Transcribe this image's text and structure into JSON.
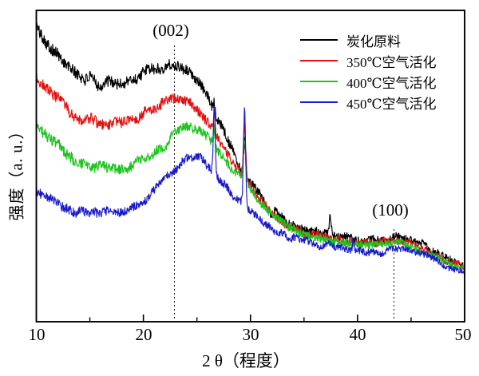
{
  "chart_data": {
    "type": "line",
    "title": "",
    "xlabel": "2 θ（程度）",
    "ylabel": "强度（a. u.）",
    "xlim": [
      10,
      50
    ],
    "ylim_units": "arbitrary intensity 0-100 (no y ticks shown)",
    "x_ticks": [
      20,
      30,
      40
    ],
    "x_tick_labels": [
      "10",
      "20",
      "30",
      "40",
      "50"
    ],
    "x_tick_label_positions": [
      10,
      20,
      30,
      40,
      50
    ],
    "x_minor_ticks": [
      15,
      25,
      35,
      45
    ],
    "grid": false,
    "frame": "full box, ticks inward on bottom axis only",
    "legend_position": "top-right, no border",
    "annotations": [
      {
        "label": "(002)",
        "x": 22.9,
        "guide": "vertical dashed line"
      },
      {
        "label": "(100)",
        "x": 43.4,
        "guide": "vertical dashed line"
      }
    ],
    "series": [
      {
        "name": "炭化原料",
        "color": "#000000",
        "seed": 101,
        "noise_left": 2.0,
        "noise_right": 1.1,
        "trend": [
          [
            10,
            95
          ],
          [
            11.5,
            88
          ],
          [
            13,
            81.5
          ],
          [
            14.5,
            78
          ],
          [
            16,
            76.5
          ],
          [
            17.5,
            76.5
          ],
          [
            19,
            78
          ],
          [
            20.5,
            80.5
          ],
          [
            22,
            82.5
          ],
          [
            23,
            83
          ],
          [
            24,
            81.5
          ],
          [
            25,
            78
          ],
          [
            26,
            72.5
          ],
          [
            27,
            65.5
          ],
          [
            28,
            58
          ],
          [
            29,
            50.5
          ],
          [
            30,
            44.5
          ],
          [
            31,
            40
          ],
          [
            32,
            34.5
          ],
          [
            33.5,
            31.5
          ],
          [
            35,
            29.5
          ],
          [
            36.5,
            28.2
          ],
          [
            38,
            27.2
          ],
          [
            39.5,
            26.5
          ],
          [
            41,
            26
          ],
          [
            42.2,
            26.4
          ],
          [
            43.5,
            27.4
          ],
          [
            44.8,
            26.2
          ],
          [
            46,
            24.6
          ],
          [
            47.5,
            22.2
          ],
          [
            49,
            19.4
          ],
          [
            50,
            18.2
          ]
        ],
        "sharp_peaks": [
          [
            26.6,
            4,
            0.08
          ],
          [
            29.45,
            11,
            0.1
          ],
          [
            32.35,
            3,
            0.08
          ],
          [
            37.45,
            5.5,
            0.09
          ]
        ]
      },
      {
        "name": "350℃空气活化",
        "color": "#e51111",
        "seed": 202,
        "noise_left": 1.8,
        "noise_right": 1.0,
        "trend": [
          [
            10,
            79
          ],
          [
            11.5,
            72.5
          ],
          [
            13,
            67.5
          ],
          [
            14.5,
            65
          ],
          [
            16,
            63.2
          ],
          [
            17.5,
            63.2
          ],
          [
            19,
            65.5
          ],
          [
            20.5,
            68
          ],
          [
            22,
            70.8
          ],
          [
            23.2,
            72
          ],
          [
            24.2,
            70.5
          ],
          [
            25.2,
            67.5
          ],
          [
            26.2,
            63
          ],
          [
            27.2,
            57.5
          ],
          [
            28.2,
            52
          ],
          [
            29.2,
            47
          ],
          [
            30.2,
            42.5
          ],
          [
            31.2,
            38.5
          ],
          [
            32.2,
            34.8
          ],
          [
            33.5,
            31
          ],
          [
            35,
            28.8
          ],
          [
            36.5,
            27.4
          ],
          [
            38,
            26.4
          ],
          [
            39.5,
            25.7
          ],
          [
            41,
            25.1
          ],
          [
            42.2,
            25.5
          ],
          [
            43.5,
            26.3
          ],
          [
            44.8,
            25.1
          ],
          [
            46,
            23.5
          ],
          [
            47.5,
            21.2
          ],
          [
            49,
            18.6
          ],
          [
            50,
            17.4
          ]
        ],
        "sharp_peaks": [
          [
            26.6,
            5,
            0.08
          ],
          [
            29.45,
            17,
            0.1
          ]
        ]
      },
      {
        "name": "400℃空气活化",
        "color": "#1ec41e",
        "seed": 303,
        "noise_left": 1.8,
        "noise_right": 1.0,
        "trend": [
          [
            10,
            63.5
          ],
          [
            11.5,
            57.5
          ],
          [
            13,
            53
          ],
          [
            14.5,
            50.2
          ],
          [
            16,
            48.8
          ],
          [
            17.5,
            48.8
          ],
          [
            19,
            50.5
          ],
          [
            20.5,
            53.5
          ],
          [
            22,
            57.5
          ],
          [
            23.8,
            62.5
          ],
          [
            25,
            61.5
          ],
          [
            26,
            58.5
          ],
          [
            27,
            54.5
          ],
          [
            28,
            50.5
          ],
          [
            29.2,
            46
          ],
          [
            30.2,
            41.5
          ],
          [
            31.2,
            37.5
          ],
          [
            32.2,
            34
          ],
          [
            33.5,
            30.5
          ],
          [
            35,
            28
          ],
          [
            36.5,
            26.6
          ],
          [
            38,
            25.6
          ],
          [
            39.5,
            24.9
          ],
          [
            41,
            24.3
          ],
          [
            42.2,
            24.7
          ],
          [
            43.5,
            25.4
          ],
          [
            44.8,
            24.3
          ],
          [
            46,
            22.7
          ],
          [
            47.5,
            20.4
          ],
          [
            49,
            17.8
          ],
          [
            50,
            16.8
          ]
        ],
        "sharp_peaks": [
          [
            26.6,
            6,
            0.08
          ],
          [
            29.45,
            13,
            0.1
          ]
        ]
      },
      {
        "name": "450℃空气活化",
        "color": "#1a1acd",
        "seed": 404,
        "noise_left": 1.5,
        "noise_right": 1.0,
        "trend": [
          [
            10,
            42
          ],
          [
            11.5,
            38.5
          ],
          [
            13,
            36.2
          ],
          [
            14.5,
            35
          ],
          [
            16,
            34.4
          ],
          [
            17.5,
            34.6
          ],
          [
            19,
            36.5
          ],
          [
            20.5,
            40
          ],
          [
            22,
            45.5
          ],
          [
            23.5,
            51
          ],
          [
            24.6,
            53
          ],
          [
            25.6,
            51.5
          ],
          [
            26.6,
            48
          ],
          [
            27.6,
            44
          ],
          [
            28.6,
            40
          ],
          [
            29.6,
            36.4
          ],
          [
            30.6,
            33.4
          ],
          [
            31.6,
            30.9
          ],
          [
            32.8,
            28.7
          ],
          [
            34,
            27
          ],
          [
            35.5,
            25.4
          ],
          [
            37,
            24.2
          ],
          [
            38.5,
            23.4
          ],
          [
            40,
            22.8
          ],
          [
            41.5,
            22.4
          ],
          [
            42.8,
            22.8
          ],
          [
            43.8,
            23.2
          ],
          [
            45,
            22.4
          ],
          [
            46.2,
            21.2
          ],
          [
            47.5,
            19.4
          ],
          [
            49,
            17
          ],
          [
            50,
            16
          ]
        ],
        "sharp_peaks": [
          [
            26.62,
            21,
            0.09
          ],
          [
            29.45,
            31,
            0.1
          ],
          [
            39.6,
            3.5,
            0.08
          ]
        ]
      }
    ]
  }
}
